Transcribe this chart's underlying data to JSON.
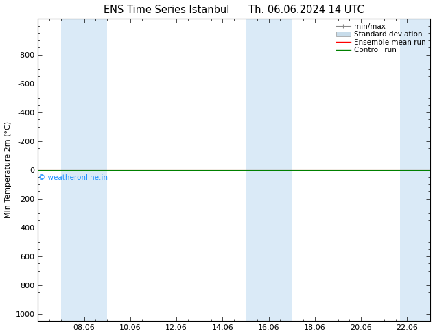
{
  "title_left": "ENS Time Series Istanbul",
  "title_right": "Th. 06.06.2024 14 UTC",
  "ylabel": "Min Temperature 2m (°C)",
  "ylim": [
    -1050,
    1050
  ],
  "yticks": [
    -800,
    -600,
    -400,
    -200,
    0,
    200,
    400,
    600,
    800,
    1000
  ],
  "xtick_labels": [
    "08.06",
    "10.06",
    "12.06",
    "14.06",
    "16.06",
    "18.06",
    "20.06",
    "22.06"
  ],
  "xtick_positions": [
    2,
    4,
    6,
    8,
    10,
    12,
    14,
    16
  ],
  "xlim": [
    0,
    17
  ],
  "shaded_regions": [
    {
      "x_start": 1.0,
      "x_end": 3.0
    },
    {
      "x_start": 9.0,
      "x_end": 11.0
    },
    {
      "x_start": 15.7,
      "x_end": 17.0
    }
  ],
  "shaded_color": "#daeaf7",
  "control_run_y": 0,
  "ensemble_mean_y": 0,
  "control_run_color": "#008000",
  "ensemble_mean_color": "#ff0000",
  "minmax_color": "#888888",
  "stddev_color": "#c8dcea",
  "watermark_text": "© weatheronline.in",
  "watermark_color": "#1e90ff",
  "background_color": "#ffffff",
  "plot_bg_color": "#ffffff",
  "legend_labels": [
    "min/max",
    "Standard deviation",
    "Ensemble mean run",
    "Controll run"
  ],
  "legend_colors": [
    "#888888",
    "#c8dcea",
    "#ff0000",
    "#008000"
  ],
  "font_size": 8,
  "title_font_size": 10.5
}
